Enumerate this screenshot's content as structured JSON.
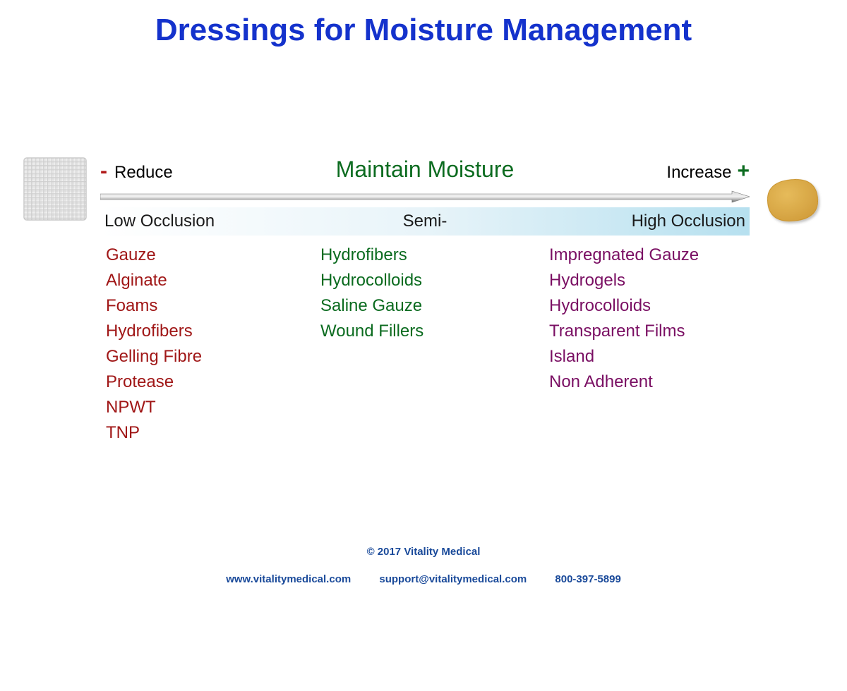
{
  "title": "Dressings for Moisture Management",
  "colors": {
    "title": "#1432cc",
    "reduce_minus": "#b01818",
    "maintain": "#0b6b1f",
    "increase_plus": "#0b6b1f",
    "band_gradient_start": "#ffffff",
    "band_gradient_mid": "#e8f4f9",
    "band_gradient_end": "#b6e0ef",
    "arrow_stroke_top": "#c8c8c8",
    "arrow_stroke_bottom": "#6a6a6a",
    "col_reduce_text": "#a01717",
    "col_maintain_text": "#0b6b1f",
    "col_increase_text": "#7a0f63",
    "footer_text": "#1a4a9a",
    "gauze_light": "#f2f2f2",
    "gauze_dark": "#d8d8d8",
    "patch_fill": "#d7a742",
    "patch_stroke": "#c79028"
  },
  "scale": {
    "minus": "-",
    "reduce": "Reduce",
    "maintain": "Maintain Moisture",
    "increase": "Increase",
    "plus": "+"
  },
  "occlusion": {
    "low": "Low Occlusion",
    "semi": "Semi-",
    "high": "High Occlusion"
  },
  "columns": {
    "reduce": [
      "Gauze",
      "Alginate",
      "Foams",
      "Hydrofibers",
      "Gelling Fibre",
      "Protease",
      "NPWT",
      "TNP"
    ],
    "maintain": [
      "Hydrofibers",
      "Hydrocolloids",
      "Saline Gauze",
      "Wound Fillers"
    ],
    "increase": [
      "Impregnated Gauze",
      "Hydrogels",
      "Hydrocolloids",
      "Transparent Films",
      "Island",
      "Non Adherent"
    ]
  },
  "footer": {
    "copyright": "© 2017    Vitality Medical",
    "url": "www.vitalitymedical.com",
    "email": "support@vitalitymedical.com",
    "phone": "800-397-5899"
  }
}
